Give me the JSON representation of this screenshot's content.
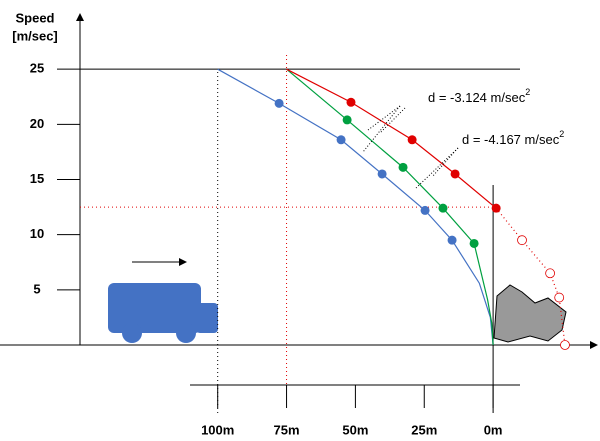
{
  "chart_data": {
    "type": "line",
    "ylabel_lines": [
      "Speed",
      "[m/sec]"
    ],
    "xlim": [
      150,
      -37
    ],
    "ylim": [
      0,
      30
    ],
    "yticks": [
      5,
      10,
      15,
      20,
      25
    ],
    "xticks": [
      {
        "value": 100,
        "label": "100m"
      },
      {
        "value": 75,
        "label": "75m"
      },
      {
        "value": 50,
        "label": "50m"
      },
      {
        "value": 25,
        "label": "25m"
      },
      {
        "value": 0,
        "label": "0m"
      }
    ],
    "ref_lines": [
      {
        "axis": "y",
        "value": 25,
        "color": "#000000",
        "style": "solid"
      },
      {
        "axis": "y",
        "value": 12.5,
        "color": "#e00000",
        "style": "dotted"
      },
      {
        "axis": "x",
        "value": 100,
        "color": "#000000",
        "style": "dotted"
      },
      {
        "axis": "x",
        "value": 75,
        "color": "#e00000",
        "style": "dotted"
      },
      {
        "axis": "x",
        "value": 0,
        "color": "#000000",
        "style": "solid"
      }
    ],
    "series": [
      {
        "color": "#4472c4",
        "style": "solid",
        "hollow": false,
        "x": [
          100,
          77.7,
          55.2,
          40.3,
          24.7,
          14.9,
          5,
          1,
          0
        ],
        "values": [
          25,
          21.9,
          18.6,
          15.5,
          12.2,
          9.5,
          5.6,
          2.5,
          0
        ],
        "markers": [
          false,
          true,
          true,
          true,
          true,
          true,
          false,
          false,
          false
        ]
      },
      {
        "color": "#00a040",
        "style": "solid",
        "hollow": false,
        "x": [
          75,
          53,
          32.7,
          18.2,
          6.9,
          2,
          0.5,
          0
        ],
        "values": [
          25,
          20.4,
          16.1,
          12.4,
          9.2,
          4.1,
          2,
          0
        ],
        "markers": [
          false,
          true,
          true,
          true,
          true,
          false,
          false,
          false
        ]
      },
      {
        "color": "#e00000",
        "style": "solid",
        "hollow": false,
        "x": [
          75,
          51.6,
          29.4,
          13.8,
          -1.1
        ],
        "values": [
          25,
          22,
          18.6,
          15.5,
          12.4
        ],
        "markers": [
          false,
          true,
          true,
          true,
          true
        ]
      },
      {
        "color": "#e00000",
        "style": "dotted",
        "hollow": true,
        "x": [
          -1.1,
          -10.5,
          -20.7,
          -24,
          -26.1
        ],
        "values": [
          12.4,
          9.5,
          6.5,
          4.3,
          0
        ],
        "markers": [
          false,
          true,
          true,
          true,
          true
        ]
      }
    ],
    "annotations": [
      {
        "text": "d = -3.124 m/sec",
        "sup": "2"
      },
      {
        "text": "d = -4.167 m/sec",
        "sup": "2"
      }
    ]
  }
}
